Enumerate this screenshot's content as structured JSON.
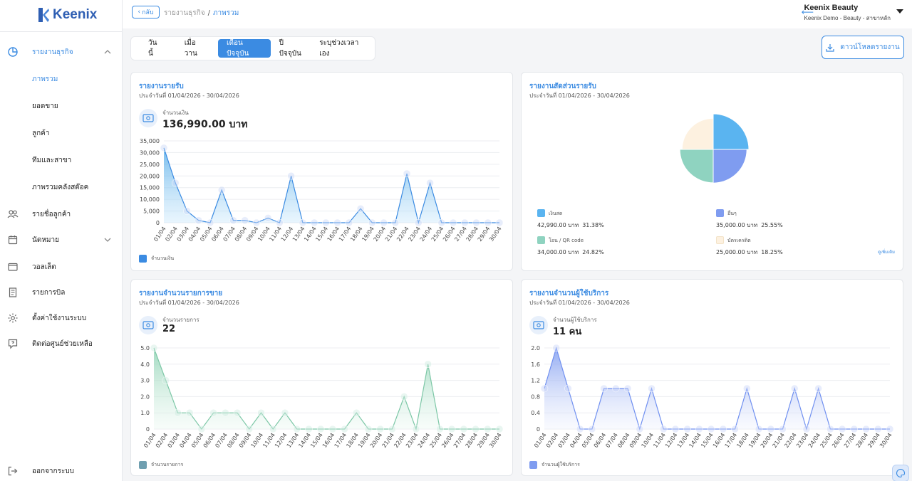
{
  "brand": {
    "name": "Keenix"
  },
  "sidebar": {
    "items": [
      {
        "label": "รายงานธุรกิจ",
        "icon": "pie-chart-icon"
      },
      {
        "label": "ภาพรวม"
      },
      {
        "label": "ยอดขาย"
      },
      {
        "label": "ลูกค้า"
      },
      {
        "label": "ทีมและสาขา"
      },
      {
        "label": "ภาพรวมคลังสต๊อค"
      },
      {
        "label": "รายชื่อลูกค้า",
        "icon": "users-icon"
      },
      {
        "label": "นัดหมาย",
        "icon": "calendar-icon"
      },
      {
        "label": "วอลเล็ต",
        "icon": "wallet-icon"
      },
      {
        "label": "รายการบิล",
        "icon": "receipt-icon"
      },
      {
        "label": "ตั้งค่าใช้งานระบบ",
        "icon": "gear-icon"
      },
      {
        "label": "ติดต่อศูนย์ช่วยเหลือ",
        "icon": "help-icon"
      }
    ],
    "logout": "ออกจากระบบ"
  },
  "header": {
    "back_label": "กลับ",
    "breadcrumb": [
      "รายงานธุรกิจ",
      "ภาพรวม"
    ],
    "user_name": "Keenix Beauty",
    "user_sub": "Keenix Demo - Beauty - สาขาหลัก"
  },
  "tabs": [
    "วันนี้",
    "เมื่อวาน",
    "เดือนปัจจุบัน",
    "ปีปัจจุบัน",
    "ระบุช่วงเวลาเอง"
  ],
  "active_tab": "เดือนปัจจุบัน",
  "download_label": "ดาวน์โหลดรายงาน",
  "colors": {
    "accent": "#3b8be2",
    "revenue": "#5aaee8",
    "sales": "#8fd3b4",
    "customers": "#7f9cf0"
  },
  "cards": {
    "revenue": {
      "title": "รายงานรายรับ",
      "subtitle": "ประจำวันที่ 01/04/2026 - 30/04/2026",
      "stat_label": "จำนวนเงิน",
      "stat_value": "136,990.00 บาท",
      "legend": "จำนวนเงิน"
    },
    "share": {
      "title": "รายงานสัดส่วนรายรับ",
      "subtitle": "ประจำวันที่ 01/04/2026 - 30/04/2026",
      "more": "ดูเพิ่มเติม"
    },
    "sales": {
      "title": "รายงานจำนวนรายการขาย",
      "subtitle": "ประจำวันที่ 01/04/2026 - 30/04/2026",
      "stat_label": "จำนวนรายการ",
      "stat_value": "22",
      "legend": "จำนวนรายการ"
    },
    "customers": {
      "title": "รายงานจำนวนผู้ใช้บริการ",
      "subtitle": "ประจำวันที่ 01/04/2026 - 30/04/2026",
      "stat_label": "จำนวนผู้ใช้บริการ",
      "stat_value": "11 คน",
      "legend": "จำนวนผู้ใช้บริการ"
    }
  },
  "chart_data": [
    {
      "type": "area",
      "categories": [
        "01/04",
        "02/04",
        "03/04",
        "04/04",
        "05/04",
        "06/04",
        "07/04",
        "08/04",
        "09/04",
        "10/04",
        "11/04",
        "12/04",
        "13/04",
        "14/04",
        "15/04",
        "16/04",
        "17/04",
        "18/04",
        "19/04",
        "20/04",
        "21/04",
        "22/04",
        "23/04",
        "24/04",
        "25/04",
        "26/04",
        "27/04",
        "28/04",
        "29/04",
        "30/04"
      ],
      "series": [
        {
          "name": "จำนวนเงิน",
          "values": [
            32000,
            17000,
            5000,
            1000,
            0,
            14000,
            1000,
            1000,
            0,
            2000,
            0,
            20000,
            0,
            0,
            0,
            0,
            0,
            6000,
            0,
            0,
            0,
            21000,
            0,
            17000,
            0,
            0,
            0,
            0,
            0,
            0
          ]
        }
      ],
      "yticks": [
        "0",
        "5,000",
        "10,000",
        "15,000",
        "20,000",
        "25,000",
        "30,000",
        "35,000"
      ],
      "ylim": [
        0,
        35000
      ]
    },
    {
      "type": "pie",
      "slices": [
        {
          "name": "เงินสด",
          "value": 42990,
          "value_label": "42,990.00 บาท",
          "percent": "31.38%",
          "color": "#5ab4f0"
        },
        {
          "name": "อื่นๆ",
          "value": 35000,
          "value_label": "35,000.00 บาท",
          "percent": "25.55%",
          "color": "#7f9cf0"
        },
        {
          "name": "โอน / QR code",
          "value": 34000,
          "value_label": "34,000.00 บาท",
          "percent": "24.82%",
          "color": "#8fd3c0"
        },
        {
          "name": "บัตรเครดิต",
          "value": 25000,
          "value_label": "25,000.00 บาท",
          "percent": "18.25%",
          "color": "#fdf1e0"
        }
      ]
    },
    {
      "type": "area",
      "categories": [
        "01/04",
        "02/04",
        "03/04",
        "04/04",
        "05/04",
        "06/04",
        "07/04",
        "08/04",
        "09/04",
        "10/04",
        "11/04",
        "12/04",
        "13/04",
        "14/04",
        "15/04",
        "16/04",
        "17/04",
        "18/04",
        "19/04",
        "20/04",
        "21/04",
        "22/04",
        "23/04",
        "24/04",
        "25/04",
        "26/04",
        "27/04",
        "28/04",
        "29/04",
        "30/04"
      ],
      "series": [
        {
          "name": "จำนวนรายการ",
          "values": [
            5,
            3,
            1,
            1,
            0,
            1,
            1,
            1,
            0,
            1,
            0,
            1,
            0,
            0,
            0,
            0,
            0,
            1,
            0,
            0,
            0,
            2,
            0,
            4,
            0,
            0,
            0,
            0,
            0,
            0
          ]
        }
      ],
      "yticks": [
        "0",
        "1.0",
        "2.0",
        "3.0",
        "4.0",
        "5.0"
      ],
      "ylim": [
        0,
        5
      ]
    },
    {
      "type": "area",
      "categories": [
        "01/04",
        "02/04",
        "03/04",
        "04/04",
        "05/04",
        "06/04",
        "07/04",
        "08/04",
        "09/04",
        "10/04",
        "11/04",
        "12/04",
        "13/04",
        "14/04",
        "15/04",
        "16/04",
        "17/04",
        "18/04",
        "19/04",
        "20/04",
        "21/04",
        "22/04",
        "23/04",
        "24/04",
        "25/04",
        "26/04",
        "27/04",
        "28/04",
        "29/04",
        "30/04"
      ],
      "series": [
        {
          "name": "จำนวนผู้ใช้บริการ",
          "values": [
            1,
            2,
            1,
            0,
            0,
            1,
            1,
            1,
            0,
            1,
            0,
            0,
            0,
            0,
            0,
            0,
            0,
            1,
            0,
            0,
            0,
            1,
            0,
            1,
            0,
            0,
            0,
            0,
            0,
            0
          ]
        }
      ],
      "yticks": [
        "0",
        "0.4",
        "0.8",
        "1.2",
        "1.6",
        "2.0"
      ],
      "ylim": [
        0,
        2
      ]
    }
  ]
}
